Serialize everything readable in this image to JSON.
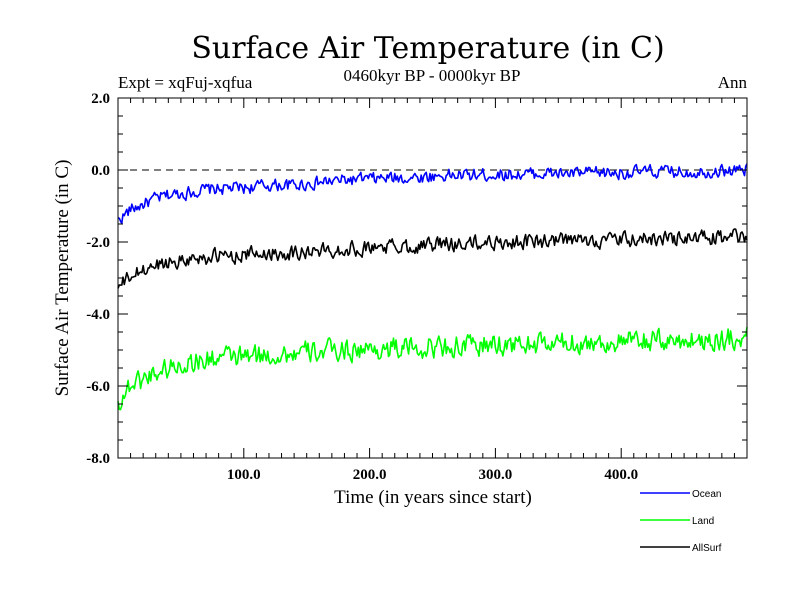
{
  "chart_data": {
    "type": "line",
    "title": "Surface Air Temperature (in C)",
    "subtitle_left": "Expt = xqFuj-xqfua",
    "subtitle_center": "0460kyr BP - 0000kyr BP",
    "subtitle_right": "Ann",
    "xlabel": "Time (in years since start)",
    "ylabel": "Surface Air Temperature (in C)",
    "xlim": [
      0,
      500
    ],
    "ylim": [
      -8,
      2
    ],
    "xticks": [
      100,
      200,
      300,
      400
    ],
    "xtick_labels": [
      "100.0",
      "200.0",
      "300.0",
      "400.0"
    ],
    "yticks": [
      2,
      0,
      -2,
      -4,
      -6,
      -8
    ],
    "ytick_labels": [
      "2.0",
      "0.0",
      "-2.0",
      "-4.0",
      "-6.0",
      "-8.0"
    ],
    "reference_line": 0,
    "legend_position": "bottom-right",
    "series": [
      {
        "name": "Ocean",
        "color": "#0000ff",
        "x": [
          0,
          10,
          20,
          30,
          40,
          50,
          60,
          70,
          80,
          90,
          100,
          120,
          140,
          160,
          180,
          200,
          220,
          240,
          260,
          280,
          300,
          320,
          340,
          360,
          380,
          400,
          420,
          440,
          460,
          480,
          500
        ],
        "values": [
          -1.4,
          -1.1,
          -0.95,
          -0.8,
          -0.7,
          -0.65,
          -0.6,
          -0.55,
          -0.52,
          -0.5,
          -0.5,
          -0.42,
          -0.42,
          -0.35,
          -0.28,
          -0.25,
          -0.22,
          -0.2,
          -0.15,
          -0.15,
          -0.12,
          -0.12,
          -0.1,
          -0.1,
          -0.08,
          -0.08,
          -0.05,
          -0.05,
          -0.05,
          -0.02,
          0.0
        ]
      },
      {
        "name": "Land",
        "color": "#00ff00",
        "x": [
          0,
          10,
          20,
          30,
          40,
          50,
          60,
          70,
          80,
          90,
          100,
          120,
          140,
          160,
          180,
          200,
          220,
          240,
          260,
          280,
          300,
          320,
          340,
          360,
          380,
          400,
          420,
          440,
          460,
          480,
          500
        ],
        "values": [
          -6.5,
          -5.95,
          -5.8,
          -5.6,
          -5.5,
          -5.4,
          -5.3,
          -5.3,
          -5.2,
          -5.2,
          -5.2,
          -5.15,
          -5.1,
          -5.05,
          -5.0,
          -5.0,
          -4.95,
          -4.95,
          -4.9,
          -4.9,
          -4.85,
          -4.85,
          -4.85,
          -4.8,
          -4.8,
          -4.8,
          -4.75,
          -4.75,
          -4.72,
          -4.7,
          -4.65
        ]
      },
      {
        "name": "AllSurf",
        "color": "#000000",
        "x": [
          0,
          10,
          20,
          30,
          40,
          50,
          60,
          70,
          80,
          90,
          100,
          120,
          140,
          160,
          180,
          200,
          220,
          240,
          260,
          280,
          300,
          320,
          340,
          360,
          380,
          400,
          420,
          440,
          460,
          480,
          500
        ],
        "values": [
          -3.3,
          -2.95,
          -2.8,
          -2.65,
          -2.55,
          -2.5,
          -2.45,
          -2.42,
          -2.4,
          -2.38,
          -2.35,
          -2.3,
          -2.3,
          -2.25,
          -2.2,
          -2.15,
          -2.12,
          -2.1,
          -2.05,
          -2.05,
          -2.0,
          -2.0,
          -1.98,
          -1.97,
          -1.95,
          -1.95,
          -1.92,
          -1.9,
          -1.9,
          -1.88,
          -1.85
        ]
      }
    ]
  }
}
